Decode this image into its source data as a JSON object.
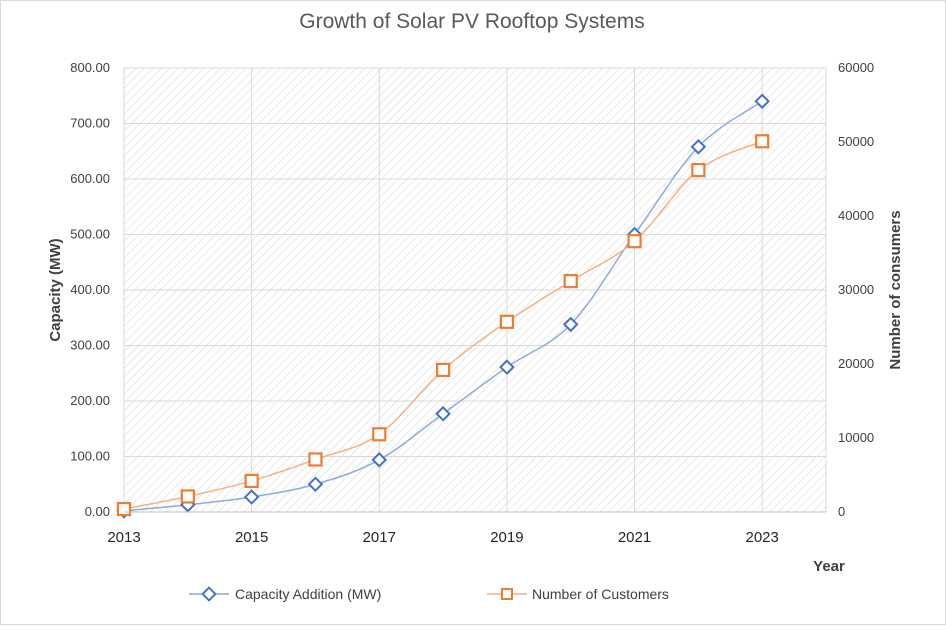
{
  "chart_data": {
    "type": "line",
    "title": "Growth of Solar PV Rooftop  Systems",
    "xlabel": "Year",
    "ylabel_left": "Capacity (MW)",
    "ylabel_right": "Number of consumers",
    "xlim": [
      2013,
      2024
    ],
    "ylim_left": [
      0,
      800
    ],
    "ylim_right": [
      0,
      60000
    ],
    "x_ticks": [
      "2013",
      "2015",
      "2017",
      "2019",
      "2021",
      "2023"
    ],
    "y_left_ticks": [
      "0.00",
      "100.00",
      "200.00",
      "300.00",
      "400.00",
      "500.00",
      "600.00",
      "700.00",
      "800.00"
    ],
    "y_right_ticks": [
      "0",
      "10000",
      "20000",
      "30000",
      "40000",
      "50000",
      "60000"
    ],
    "grid": true,
    "legend_position": "bottom",
    "x": [
      2013,
      2014,
      2015,
      2016,
      2017,
      2018,
      2019,
      2020,
      2021,
      2022,
      2023
    ],
    "series": [
      {
        "name": "Capacity Addition (MW)",
        "axis": "left",
        "marker": "diamond",
        "color": "#4472C4",
        "line_color": "#8FAADC",
        "values": [
          2,
          13,
          27,
          50,
          94,
          177,
          261,
          338,
          500,
          658,
          740
        ]
      },
      {
        "name": "Number of Customers",
        "axis": "right",
        "marker": "square",
        "color": "#ED7D31",
        "line_color": "#F4B183",
        "values": [
          400,
          2100,
          4200,
          7100,
          10500,
          19200,
          25700,
          31200,
          36600,
          46200,
          50100
        ]
      }
    ]
  }
}
